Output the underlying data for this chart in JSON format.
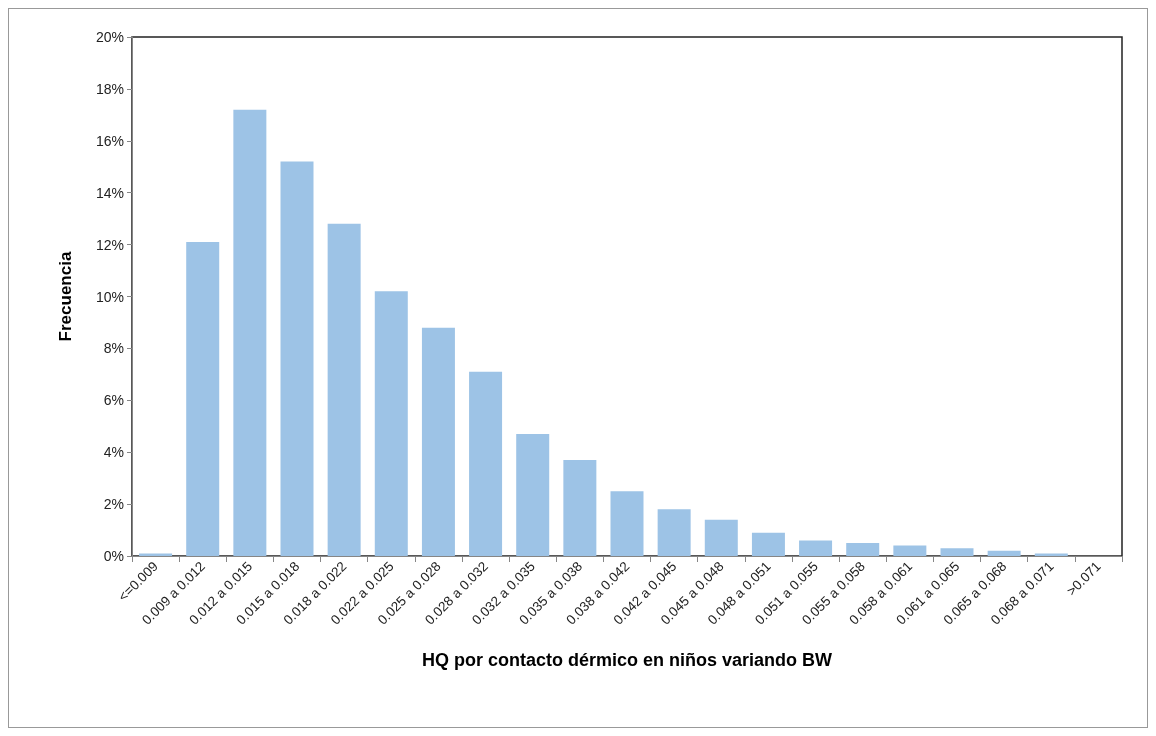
{
  "chart_data": {
    "type": "bar",
    "xlabel": "HQ por contacto dérmico en niños variando BW",
    "ylabel": "Frecuencia",
    "categories": [
      "<=0.009",
      "0.009 a 0.012",
      "0.012 a 0.015",
      "0.015 a 0.018",
      "0.018 a 0.022",
      "0.022 a 0.025",
      "0.025 a 0.028",
      "0.028 a 0.032",
      "0.032 a 0.035",
      "0.035 a 0.038",
      "0.038 a 0.042",
      "0.042 a 0.045",
      "0.045 a 0.048",
      "0.048 a 0.051",
      "0.051 a 0.055",
      "0.055 a 0.058",
      "0.058 a 0.061",
      "0.061 a 0.065",
      "0.065 a 0.068",
      "0.068 a 0.071",
      ">0.071"
    ],
    "values": [
      0.1,
      12.1,
      17.2,
      15.2,
      12.8,
      10.2,
      8.8,
      7.1,
      4.7,
      3.7,
      2.5,
      1.8,
      1.4,
      0.9,
      0.6,
      0.5,
      0.4,
      0.3,
      0.2,
      0.1,
      0
    ],
    "color": "#9dc3e6",
    "ylim": [
      0,
      20
    ],
    "yticks": [
      {
        "value": 0,
        "label": "0%"
      },
      {
        "value": 2,
        "label": "2%"
      },
      {
        "value": 4,
        "label": "4%"
      },
      {
        "value": 6,
        "label": "6%"
      },
      {
        "value": 8,
        "label": "8%"
      },
      {
        "value": 10,
        "label": "10%"
      },
      {
        "value": 12,
        "label": "12%"
      },
      {
        "value": 14,
        "label": "14%"
      },
      {
        "value": 16,
        "label": "16%"
      },
      {
        "value": 18,
        "label": "18%"
      },
      {
        "value": 20,
        "label": "20%"
      }
    ],
    "grid": false
  }
}
